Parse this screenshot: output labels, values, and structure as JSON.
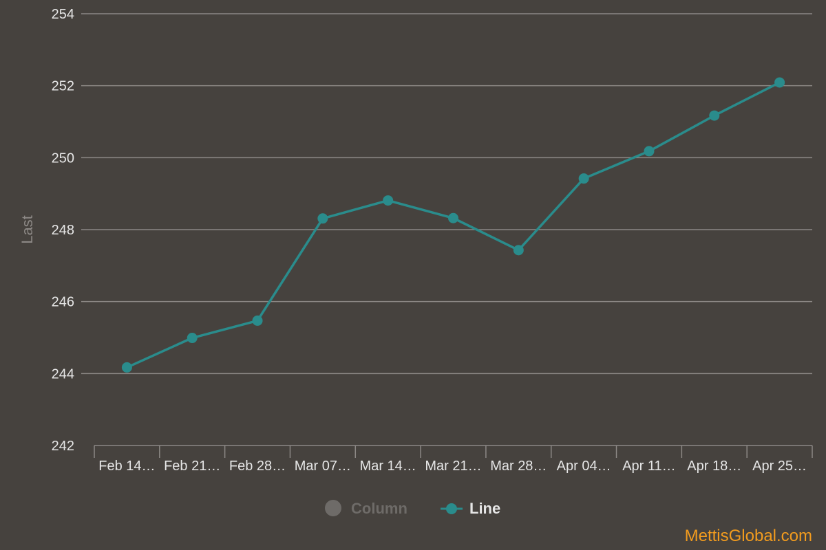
{
  "chart_data": {
    "type": "line",
    "categories": [
      "Feb 14…",
      "Feb 21…",
      "Feb 28…",
      "Mar 07…",
      "Mar 14…",
      "Mar 21…",
      "Mar 28…",
      "Apr 04…",
      "Apr 11…",
      "Apr 18…",
      "Apr 25…"
    ],
    "series": [
      {
        "name": "Line",
        "values": [
          244.17,
          244.99,
          245.47,
          248.31,
          248.81,
          248.32,
          247.43,
          249.42,
          250.18,
          251.17,
          252.09
        ],
        "color": "#2a8c8c"
      }
    ],
    "ylabel": "Last",
    "ylim": [
      242,
      254
    ],
    "yticks": [
      242,
      244,
      246,
      248,
      250,
      252,
      254
    ],
    "grid": true,
    "legend": {
      "position": "bottom",
      "items": [
        {
          "label": "Column",
          "active": false,
          "color": "#6e6b68"
        },
        {
          "label": "Line",
          "active": true,
          "color": "#2a8c8c"
        }
      ]
    }
  },
  "colors": {
    "background": "#46423e",
    "grid": "#8c8885",
    "tick_text": "#e6e6e6",
    "legend_active": "#e6e6e6",
    "legend_inactive": "#6e6b68",
    "watermark": "#f39c1e"
  },
  "watermark": "MettisGlobal.com"
}
